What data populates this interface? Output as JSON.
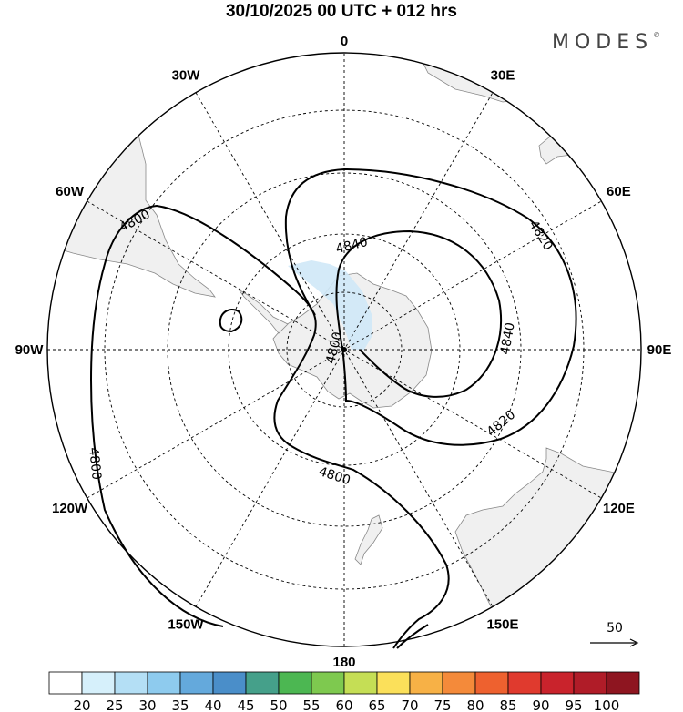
{
  "title": "30/10/2025  00 UTC  + 012 hrs",
  "brand": {
    "name": "MODES",
    "mark": "©"
  },
  "map": {
    "projection": "south-polar-stereographic",
    "longitude_labels": [
      {
        "text": "0",
        "lon": 0
      },
      {
        "text": "30E",
        "lon": 30
      },
      {
        "text": "60E",
        "lon": 60
      },
      {
        "text": "90E",
        "lon": 90
      },
      {
        "text": "120E",
        "lon": 120
      },
      {
        "text": "150E",
        "lon": 150
      },
      {
        "text": "180",
        "lon": 180
      },
      {
        "text": "150W",
        "lon": -150
      },
      {
        "text": "120W",
        "lon": -120
      },
      {
        "text": "90W",
        "lon": -90
      },
      {
        "text": "60W",
        "lon": -60
      },
      {
        "text": "30W",
        "lon": -30
      }
    ],
    "contour_labels": [
      "4800",
      "4800",
      "4800",
      "4800",
      "4820",
      "4820",
      "4840",
      "4840"
    ],
    "field_colors": {
      "land": "#f0f0f0",
      "coast": "#888888",
      "shading": "#cfe8f7"
    }
  },
  "wind_reference": {
    "label": "50",
    "icon": "arrow-right-icon"
  },
  "colorbar": {
    "ticks": [
      "20",
      "25",
      "30",
      "35",
      "40",
      "45",
      "50",
      "55",
      "60",
      "65",
      "70",
      "75",
      "80",
      "85",
      "90",
      "95",
      "100"
    ],
    "colors": [
      "#ffffff",
      "#d6f0fb",
      "#b4dff5",
      "#8ecbee",
      "#64a9dc",
      "#4a8ec9",
      "#45a08a",
      "#4cb752",
      "#7ec94f",
      "#c5de55",
      "#fbe05a",
      "#f7b146",
      "#f48a3a",
      "#ee612f",
      "#e03a2e",
      "#c9232c",
      "#b01c28",
      "#8e1520"
    ]
  }
}
